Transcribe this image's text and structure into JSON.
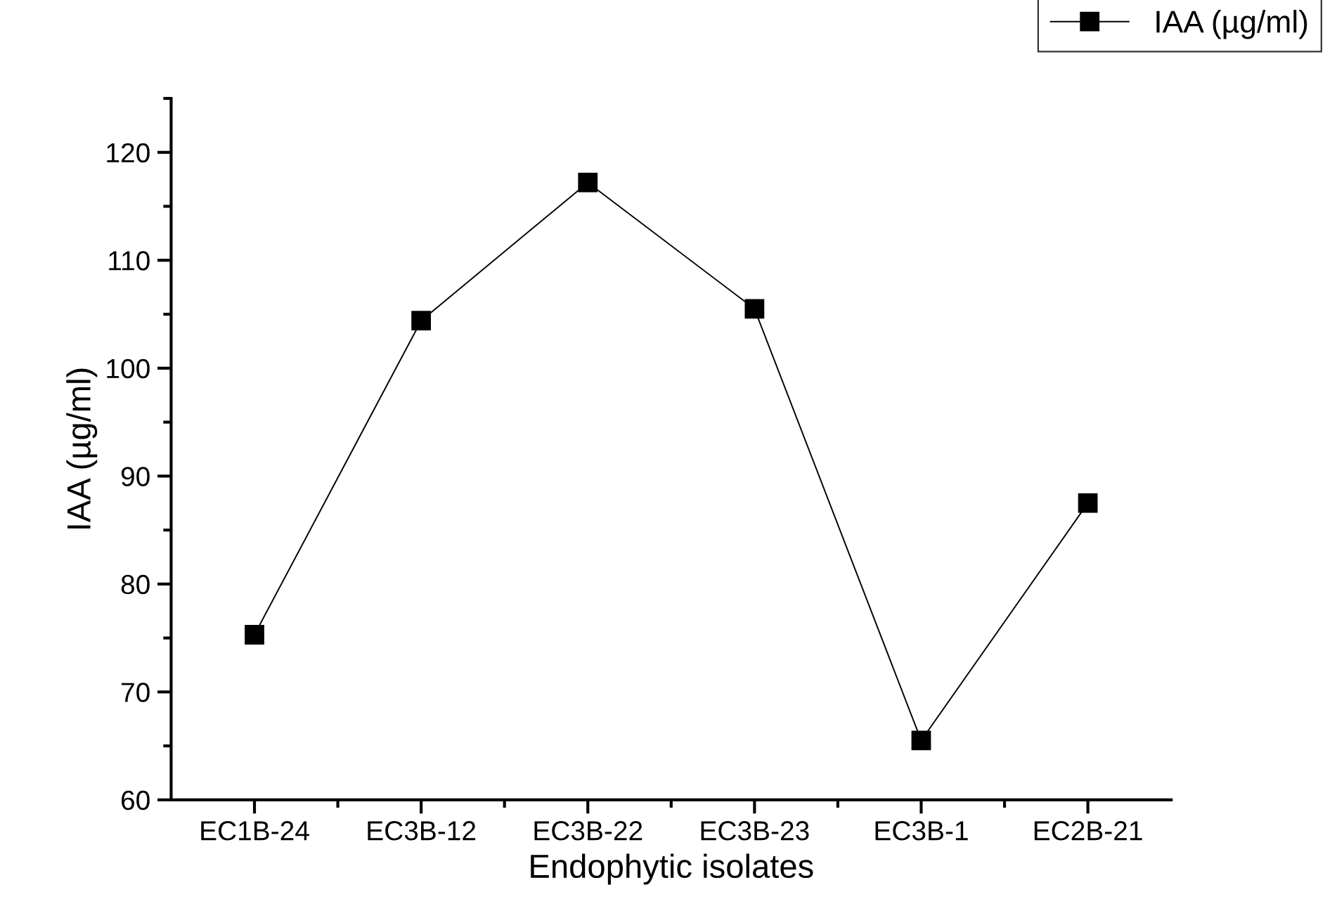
{
  "chart_data": {
    "type": "line",
    "xlabel": "Endophytic isolates",
    "ylabel": "IAA (µg/ml)",
    "categories": [
      "EC1B-24",
      "EC3B-12",
      "EC3B-22",
      "EC3B-23",
      "EC3B-1",
      "EC2B-21"
    ],
    "series": [
      {
        "name": "IAA (µg/ml)",
        "color": "#000000",
        "values": [
          75.3,
          104.4,
          117.2,
          105.5,
          65.5,
          87.5
        ]
      }
    ],
    "ylim": [
      60,
      125
    ],
    "yticks": [
      60,
      70,
      80,
      90,
      100,
      110,
      120
    ],
    "marker": "square",
    "line_style": "solid",
    "grid": false,
    "legend": "top right"
  }
}
